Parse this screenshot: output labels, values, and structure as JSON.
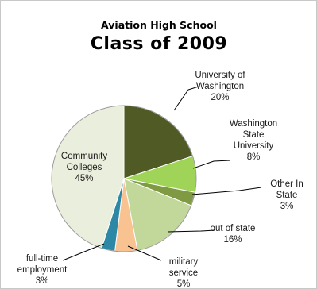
{
  "chart_data": {
    "type": "pie",
    "title": "Aviation High School",
    "subtitle": "Class of 2009",
    "slices": [
      {
        "label": "University of Washington",
        "label_lines": [
          "University of",
          "Washington"
        ],
        "percent_text": "20%",
        "value": 20,
        "color": "#4f5a24"
      },
      {
        "label": "Washington State University",
        "label_lines": [
          "Washington",
          "State",
          "University"
        ],
        "percent_text": "8%",
        "value": 8,
        "color": "#9fd459"
      },
      {
        "label": "Other In State",
        "label_lines": [
          "Other In",
          "State"
        ],
        "percent_text": "3%",
        "value": 3,
        "color": "#7f9a43"
      },
      {
        "label": "out of state",
        "label_lines": [
          "out of state"
        ],
        "percent_text": "16%",
        "value": 16,
        "color": "#c2d89a"
      },
      {
        "label": "military service",
        "label_lines": [
          "military",
          "service"
        ],
        "percent_text": "5%",
        "value": 5,
        "color": "#f9c291"
      },
      {
        "label": "full-time employment",
        "label_lines": [
          "full-time",
          "employment"
        ],
        "percent_text": "3%",
        "value": 3,
        "color": "#2d88a6"
      },
      {
        "label": "Community Colleges",
        "label_lines": [
          "Community",
          "Colleges"
        ],
        "percent_text": "45%",
        "value": 45,
        "color": "#eaeedd"
      }
    ]
  }
}
